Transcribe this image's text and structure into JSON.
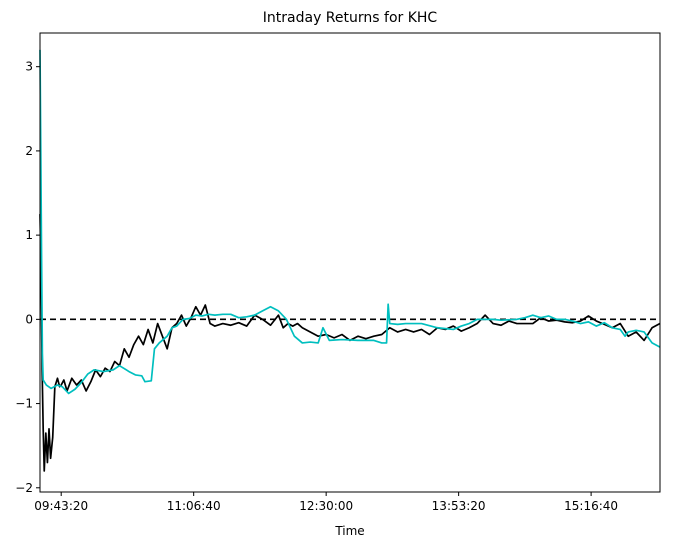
{
  "chart_data": {
    "type": "line",
    "title": "Intraday Returns for KHC",
    "xlabel": "Time",
    "ylabel": "",
    "x_range": [
      "09:30:00",
      "16:00:00"
    ],
    "ylim": [
      -2.05,
      3.4
    ],
    "x_ticks": [
      "09:43:20",
      "11:06:40",
      "12:30:00",
      "13:53:20",
      "15:16:40"
    ],
    "y_ticks": [
      -2,
      -1,
      0,
      1,
      2,
      3
    ],
    "grid": false,
    "reference_line": {
      "y": 0,
      "style": "dashed",
      "color": "#000000"
    },
    "series": [
      {
        "color": "#000000",
        "points": [
          [
            "09:30:00",
            1.25
          ],
          [
            "09:30:40",
            0.6
          ],
          [
            "09:31:20",
            -0.6
          ],
          [
            "09:32:00",
            -1.3
          ],
          [
            "09:32:40",
            -1.8
          ],
          [
            "09:33:40",
            -1.35
          ],
          [
            "09:34:40",
            -1.7
          ],
          [
            "09:35:40",
            -1.3
          ],
          [
            "09:36:40",
            -1.65
          ],
          [
            "09:38:00",
            -1.4
          ],
          [
            "09:39:20",
            -0.8
          ],
          [
            "09:41:00",
            -0.7
          ],
          [
            "09:42:20",
            -0.8
          ],
          [
            "09:43:20",
            -0.78
          ],
          [
            "09:45:00",
            -0.72
          ],
          [
            "09:47:00",
            -0.85
          ],
          [
            "09:50:00",
            -0.7
          ],
          [
            "09:53:00",
            -0.78
          ],
          [
            "09:56:00",
            -0.72
          ],
          [
            "09:59:00",
            -0.85
          ],
          [
            "10:02:00",
            -0.74
          ],
          [
            "10:05:00",
            -0.6
          ],
          [
            "10:08:00",
            -0.68
          ],
          [
            "10:11:00",
            -0.58
          ],
          [
            "10:14:00",
            -0.62
          ],
          [
            "10:17:00",
            -0.5
          ],
          [
            "10:20:00",
            -0.55
          ],
          [
            "10:23:00",
            -0.35
          ],
          [
            "10:26:00",
            -0.45
          ],
          [
            "10:29:00",
            -0.3
          ],
          [
            "10:32:00",
            -0.2
          ],
          [
            "10:35:00",
            -0.3
          ],
          [
            "10:38:00",
            -0.12
          ],
          [
            "10:41:00",
            -0.28
          ],
          [
            "10:44:00",
            -0.05
          ],
          [
            "10:47:00",
            -0.2
          ],
          [
            "10:50:00",
            -0.35
          ],
          [
            "10:53:00",
            -0.1
          ],
          [
            "10:56:00",
            -0.05
          ],
          [
            "10:59:00",
            0.05
          ],
          [
            "11:02:00",
            -0.08
          ],
          [
            "11:05:00",
            0.02
          ],
          [
            "11:08:00",
            0.15
          ],
          [
            "11:11:00",
            0.05
          ],
          [
            "11:14:00",
            0.17
          ],
          [
            "11:17:00",
            -0.05
          ],
          [
            "11:20:00",
            -0.08
          ],
          [
            "11:25:00",
            -0.05
          ],
          [
            "11:30:00",
            -0.07
          ],
          [
            "11:35:00",
            -0.04
          ],
          [
            "11:40:00",
            -0.08
          ],
          [
            "11:45:00",
            0.05
          ],
          [
            "11:50:00",
            0.0
          ],
          [
            "11:55:00",
            -0.07
          ],
          [
            "12:00:00",
            0.05
          ],
          [
            "12:03:00",
            -0.1
          ],
          [
            "12:06:00",
            -0.05
          ],
          [
            "12:09:00",
            -0.08
          ],
          [
            "12:12:00",
            -0.05
          ],
          [
            "12:15:00",
            -0.1
          ],
          [
            "12:20:00",
            -0.15
          ],
          [
            "12:25:00",
            -0.2
          ],
          [
            "12:30:00",
            -0.18
          ],
          [
            "12:35:00",
            -0.22
          ],
          [
            "12:40:00",
            -0.18
          ],
          [
            "12:45:00",
            -0.25
          ],
          [
            "12:50:00",
            -0.2
          ],
          [
            "12:55:00",
            -0.23
          ],
          [
            "13:00:00",
            -0.2
          ],
          [
            "13:05:00",
            -0.18
          ],
          [
            "13:10:00",
            -0.1
          ],
          [
            "13:15:00",
            -0.15
          ],
          [
            "13:20:00",
            -0.12
          ],
          [
            "13:25:00",
            -0.15
          ],
          [
            "13:30:00",
            -0.12
          ],
          [
            "13:35:00",
            -0.18
          ],
          [
            "13:40:00",
            -0.1
          ],
          [
            "13:45:00",
            -0.12
          ],
          [
            "13:50:00",
            -0.08
          ],
          [
            "13:55:00",
            -0.14
          ],
          [
            "14:00:00",
            -0.1
          ],
          [
            "14:05:00",
            -0.05
          ],
          [
            "14:10:00",
            0.05
          ],
          [
            "14:15:00",
            -0.05
          ],
          [
            "14:20:00",
            -0.07
          ],
          [
            "14:25:00",
            -0.02
          ],
          [
            "14:30:00",
            -0.05
          ],
          [
            "14:35:00",
            -0.05
          ],
          [
            "14:40:00",
            -0.05
          ],
          [
            "14:45:00",
            0.02
          ],
          [
            "14:50:00",
            -0.02
          ],
          [
            "14:55:00",
            -0.01
          ],
          [
            "15:00:00",
            -0.03
          ],
          [
            "15:05:00",
            -0.04
          ],
          [
            "15:10:00",
            -0.02
          ],
          [
            "15:15:00",
            0.04
          ],
          [
            "15:20:00",
            -0.02
          ],
          [
            "15:25:00",
            -0.06
          ],
          [
            "15:30:00",
            -0.1
          ],
          [
            "15:35:00",
            -0.05
          ],
          [
            "15:40:00",
            -0.2
          ],
          [
            "15:45:00",
            -0.15
          ],
          [
            "15:50:00",
            -0.25
          ],
          [
            "15:55:00",
            -0.1
          ],
          [
            "16:00:00",
            -0.05
          ]
        ]
      },
      {
        "color": "#00bfbf",
        "points": [
          [
            "09:30:00",
            3.2
          ],
          [
            "09:30:30",
            2.0
          ],
          [
            "09:31:00",
            0.7
          ],
          [
            "09:31:30",
            -0.4
          ],
          [
            "09:32:00",
            -0.72
          ],
          [
            "09:34:00",
            -0.78
          ],
          [
            "09:37:00",
            -0.82
          ],
          [
            "09:41:00",
            -0.78
          ],
          [
            "09:44:00",
            -0.8
          ],
          [
            "09:48:00",
            -0.88
          ],
          [
            "09:52:00",
            -0.83
          ],
          [
            "09:56:00",
            -0.75
          ],
          [
            "10:00:00",
            -0.65
          ],
          [
            "10:04:00",
            -0.6
          ],
          [
            "10:10:00",
            -0.62
          ],
          [
            "10:16:00",
            -0.6
          ],
          [
            "10:20:00",
            -0.55
          ],
          [
            "10:26:00",
            -0.62
          ],
          [
            "10:30:00",
            -0.66
          ],
          [
            "10:34:00",
            -0.67
          ],
          [
            "10:36:00",
            -0.74
          ],
          [
            "10:40:00",
            -0.73
          ],
          [
            "10:42:00",
            -0.35
          ],
          [
            "10:45:00",
            -0.28
          ],
          [
            "10:50:00",
            -0.2
          ],
          [
            "10:53:00",
            -0.1
          ],
          [
            "10:56:00",
            -0.08
          ],
          [
            "11:00:00",
            0.0
          ],
          [
            "11:04:00",
            0.01
          ],
          [
            "11:08:00",
            0.05
          ],
          [
            "11:12:00",
            0.04
          ],
          [
            "11:16:00",
            0.06
          ],
          [
            "11:20:00",
            0.05
          ],
          [
            "11:25:00",
            0.06
          ],
          [
            "11:30:00",
            0.06
          ],
          [
            "11:35:00",
            0.02
          ],
          [
            "11:40:00",
            0.03
          ],
          [
            "11:45:00",
            0.05
          ],
          [
            "11:50:00",
            0.1
          ],
          [
            "11:55:00",
            0.15
          ],
          [
            "12:00:00",
            0.1
          ],
          [
            "12:05:00",
            0.0
          ],
          [
            "12:10:00",
            -0.2
          ],
          [
            "12:15:00",
            -0.28
          ],
          [
            "12:20:00",
            -0.27
          ],
          [
            "12:25:00",
            -0.28
          ],
          [
            "12:28:00",
            -0.1
          ],
          [
            "12:32:00",
            -0.25
          ],
          [
            "12:40:00",
            -0.24
          ],
          [
            "12:50:00",
            -0.25
          ],
          [
            "13:00:00",
            -0.25
          ],
          [
            "13:05:00",
            -0.28
          ],
          [
            "13:08:00",
            -0.28
          ],
          [
            "13:09:00",
            0.18
          ],
          [
            "13:10:00",
            -0.05
          ],
          [
            "13:15:00",
            -0.06
          ],
          [
            "13:20:00",
            -0.05
          ],
          [
            "13:30:00",
            -0.05
          ],
          [
            "13:40:00",
            -0.1
          ],
          [
            "13:50:00",
            -0.12
          ],
          [
            "13:55:00",
            -0.08
          ],
          [
            "14:00:00",
            -0.05
          ],
          [
            "14:05:00",
            0.0
          ],
          [
            "14:15:00",
            0.0
          ],
          [
            "14:20:00",
            -0.01
          ],
          [
            "14:30:00",
            0.0
          ],
          [
            "14:35:00",
            0.02
          ],
          [
            "14:40:00",
            0.05
          ],
          [
            "14:45:00",
            0.02
          ],
          [
            "14:50:00",
            0.04
          ],
          [
            "14:55:00",
            0.0
          ],
          [
            "15:00:00",
            0.0
          ],
          [
            "15:05:00",
            -0.02
          ],
          [
            "15:10:00",
            -0.05
          ],
          [
            "15:15:00",
            -0.03
          ],
          [
            "15:20:00",
            -0.08
          ],
          [
            "15:25:00",
            -0.04
          ],
          [
            "15:30:00",
            -0.1
          ],
          [
            "15:35:00",
            -0.12
          ],
          [
            "15:38:00",
            -0.2
          ],
          [
            "15:40:00",
            -0.15
          ],
          [
            "15:45:00",
            -0.13
          ],
          [
            "15:50:00",
            -0.15
          ],
          [
            "15:55:00",
            -0.28
          ],
          [
            "16:00:00",
            -0.33
          ]
        ]
      }
    ]
  }
}
